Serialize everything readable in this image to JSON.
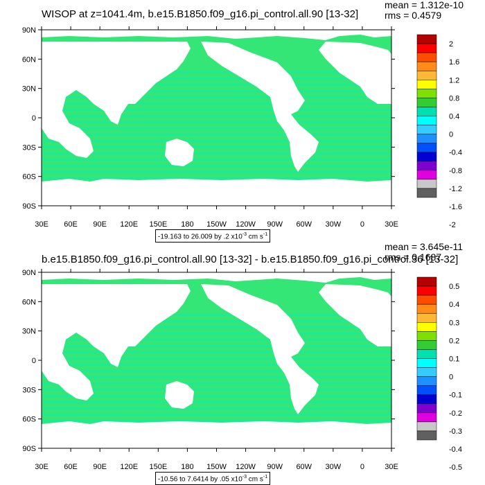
{
  "panels": [
    {
      "title": "WISOP at z=1041.4m, b.e15.B1850.f09_g16.pi_control.all.90 [13-32]",
      "mean_label": "mean = 1.312e-10",
      "rms_label": "rms = 0.4579",
      "range_label": "-19.163 to 26.009 by .2 x10",
      "range_exp": "-3",
      "range_units": " cm s",
      "range_units_exp": "-1",
      "colorbar_labels": [
        "2",
        "1.6",
        "1.2",
        "0.8",
        "0.4",
        "0",
        "-0.4",
        "-0.8",
        "-1.2",
        "-1.6",
        "-2"
      ]
    },
    {
      "title": "b.e15.B1850.f09_g16.pi_control.all.90 [13-32] - b.e15.B1850.f09_g16.pi_control.36 [13-32]",
      "mean_label": "mean = 3.645e-11",
      "rms_label": "rms = 0.1687",
      "range_label": "-10.56 to 7.6414 by .05 x10",
      "range_exp": "-3",
      "range_units": " cm s",
      "range_units_exp": "-1",
      "colorbar_labels": [
        "0.5",
        "0.4",
        "0.3",
        "0.2",
        "0.1",
        "0",
        "-0.1",
        "-0.2",
        "-0.3",
        "-0.4",
        "-0.5"
      ]
    }
  ],
  "axes": {
    "lat_labels": [
      "90N",
      "60N",
      "30N",
      "0",
      "30S",
      "60S",
      "90S"
    ],
    "lon_labels": [
      "30E",
      "60E",
      "90E",
      "120E",
      "150E",
      "180",
      "150W",
      "120W",
      "90W",
      "60W",
      "30W",
      "0",
      "30E"
    ]
  },
  "colorbar_colors": [
    "#b30000",
    "#ff0000",
    "#ff4d00",
    "#ff8c1a",
    "#ffb833",
    "#ffff00",
    "#7fe000",
    "#33cc33",
    "#00e0b0",
    "#00ffff",
    "#33ccff",
    "#1e90ff",
    "#0050ff",
    "#0000d0",
    "#8000d0",
    "#e000e0",
    "#c8c8c8",
    "#606060"
  ]
}
